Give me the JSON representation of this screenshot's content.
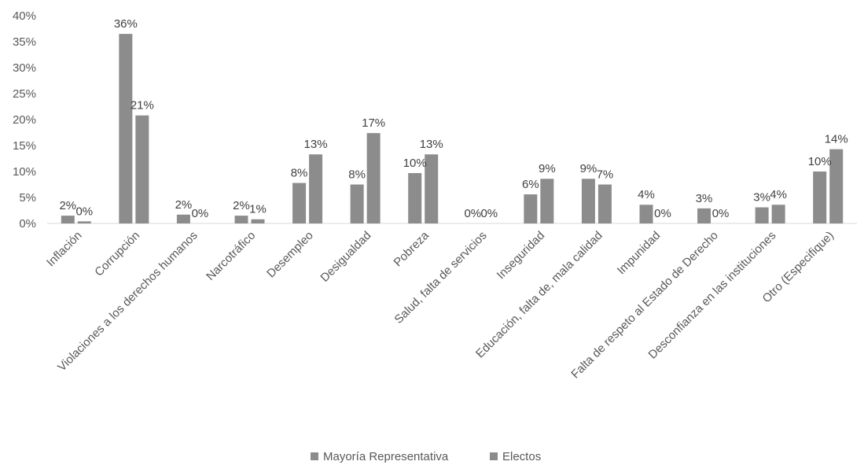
{
  "chart_data": {
    "type": "bar",
    "title": "",
    "xlabel": "",
    "ylabel": "",
    "ylim": [
      0,
      40
    ],
    "yticks": [
      "0%",
      "5%",
      "10%",
      "15%",
      "20%",
      "25%",
      "30%",
      "35%",
      "40%"
    ],
    "legend_position": "bottom",
    "grid": false,
    "categories": [
      "Inflación",
      "Corrupción",
      "Violaciones a los derechos humanos",
      "Narcotráfico",
      "Desempleo",
      "Desigualdad",
      "Pobreza",
      "Salud, falta de servicios",
      "Inseguridad",
      "Educación, falta de, mala calidad",
      "Impunidad",
      "Falta de respeto al Estado de Derecho",
      "Desconfianza en las instituciones",
      "Otro (Especifique)"
    ],
    "series": [
      {
        "name": "Mayoría Representativa",
        "color": "#8c8c8c",
        "values": [
          1.5,
          36.5,
          1.7,
          1.5,
          7.8,
          7.5,
          9.7,
          0.0,
          5.6,
          8.6,
          3.6,
          2.9,
          3.1,
          10.0
        ],
        "labels": [
          "2%",
          "36%",
          "2%",
          "2%",
          "8%",
          "8%",
          "10%",
          "0%",
          "6%",
          "9%",
          "4%",
          "3%",
          "3%",
          "10%"
        ]
      },
      {
        "name": "Electos",
        "color": "#8c8c8c",
        "values": [
          0.4,
          20.8,
          0.0,
          0.8,
          13.3,
          17.4,
          13.3,
          0.0,
          8.6,
          7.5,
          0.0,
          0.0,
          3.6,
          14.3
        ],
        "labels": [
          "0%",
          "21%",
          "0%",
          "1%",
          "13%",
          "17%",
          "13%",
          "0%",
          "9%",
          "7%",
          "0%",
          "0%",
          "4%",
          "14%"
        ]
      }
    ]
  }
}
